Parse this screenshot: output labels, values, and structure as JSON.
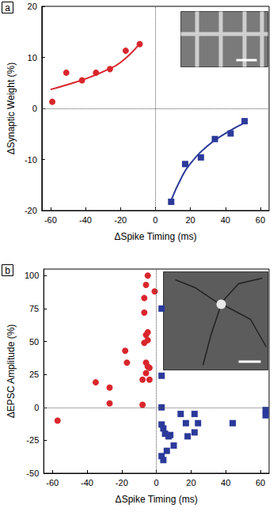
{
  "chart_data": [
    {
      "type": "scatter",
      "title": "a",
      "x_label": "ΔSpike Timing (ms)",
      "y_label": "ΔSynaptic Weight (%)",
      "xlim": [
        -65,
        65
      ],
      "xticks": [
        -60,
        -40,
        -20,
        0,
        20,
        40,
        60
      ],
      "ylim": [
        -20,
        20
      ],
      "yticks": [
        -20,
        -10,
        0,
        10,
        20
      ],
      "grid": false,
      "series": [
        {
          "type": "scatter",
          "color": "#d9262c",
          "marker": "circle",
          "x": [
            -59,
            -51,
            -42,
            -34,
            -26,
            -17,
            -9
          ],
          "values": [
            1.3,
            7,
            5.5,
            7,
            7.7,
            11.3,
            12.6
          ]
        },
        {
          "type": "scatter",
          "color": "#2b3a9a",
          "marker": "square",
          "x": [
            9,
            17,
            26,
            34,
            43,
            51
          ],
          "values": [
            -18.3,
            -10.9,
            -9.6,
            -6,
            -4.9,
            -2.5
          ]
        },
        {
          "type": "line",
          "color": "#d9262c",
          "line_style": "solid",
          "x": [
            -60,
            -50,
            -40,
            -30,
            -20,
            -9
          ],
          "values": [
            3.7,
            4.7,
            5.8,
            7.2,
            9.0,
            12.7
          ]
        },
        {
          "type": "line",
          "color": "#2b3a9a",
          "line_style": "solid",
          "x": [
            9,
            15,
            20,
            30,
            40,
            51
          ],
          "values": [
            -18.0,
            -13.5,
            -10.8,
            -7.3,
            -4.9,
            -2.8
          ]
        }
      ]
    },
    {
      "type": "scatter",
      "title": "b",
      "x_label": "ΔSpike Timing (ms)",
      "y_label": "ΔEPSC Amplitude (%)",
      "xlim": [
        -65,
        65
      ],
      "xticks": [
        -60,
        -40,
        -20,
        0,
        20,
        40,
        60
      ],
      "ylim": [
        -50,
        105
      ],
      "yticks": [
        -50,
        -25,
        0,
        25,
        50,
        75,
        100
      ],
      "grid": false,
      "series": [
        {
          "type": "scatter",
          "color": "#d9262c",
          "marker": "circle",
          "x": [
            -57,
            -35,
            -27,
            -27,
            -18,
            -17,
            -8,
            -8,
            -7,
            -7,
            -7,
            -6,
            -5,
            -6,
            -5,
            -6,
            -5,
            -4,
            -4,
            -6,
            -1,
            -5
          ],
          "values": [
            -10,
            19,
            15,
            3,
            43,
            34,
            2,
            21,
            49,
            72,
            83,
            93,
            100,
            55,
            57,
            34,
            31,
            30,
            21,
            26,
            88,
            51
          ]
        },
        {
          "type": "scatter",
          "color": "#2b3a9a",
          "marker": "square",
          "x": [
            3,
            3,
            3,
            3,
            4,
            3,
            4,
            5,
            6,
            7,
            8,
            10,
            14,
            17,
            18,
            22,
            22,
            24,
            44,
            63,
            63
          ],
          "values": [
            75,
            24,
            0,
            -13,
            -16,
            -37,
            -40,
            -20,
            -33,
            -22,
            -21,
            -29,
            -5,
            -12,
            -22,
            -5,
            -19,
            -12,
            -12,
            -2,
            -6
          ]
        }
      ]
    }
  ]
}
